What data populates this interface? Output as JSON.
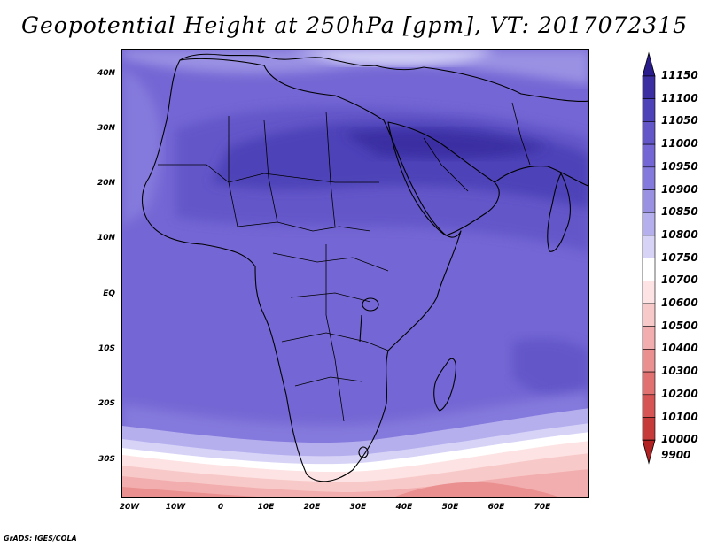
{
  "title": "Geopotential Height at 250hPa [gpm], VT: 2017072315",
  "footer": "GrADS: IGES/COLA",
  "map": {
    "region": "Africa and Middle East",
    "lon_range": [
      -23,
      80
    ],
    "lat_range": [
      -37,
      45
    ],
    "lat_ticks": [
      "40N",
      "30N",
      "20N",
      "10N",
      "EQ",
      "10S",
      "20S",
      "30S"
    ],
    "lon_ticks": [
      "20W",
      "10W",
      "0",
      "10E",
      "20E",
      "30E",
      "40E",
      "50E",
      "60E",
      "70E"
    ]
  },
  "colorbar": {
    "levels": [
      "11150",
      "11100",
      "11050",
      "11000",
      "10950",
      "10900",
      "10850",
      "10800",
      "10750",
      "10700",
      "10600",
      "10500",
      "10400",
      "10300",
      "10200",
      "10100",
      "10000",
      "9900"
    ],
    "colors": [
      "#2a1c8c",
      "#3b2ea3",
      "#4e42b8",
      "#6356c9",
      "#7466d4",
      "#8479dc",
      "#9a91e3",
      "#b5afee",
      "#d6d3f7",
      "#ffffff",
      "#fde3e3",
      "#f8c9c9",
      "#f2aeae",
      "#ea9090",
      "#e17171",
      "#d65454",
      "#c63a3a",
      "#b22222"
    ]
  }
}
